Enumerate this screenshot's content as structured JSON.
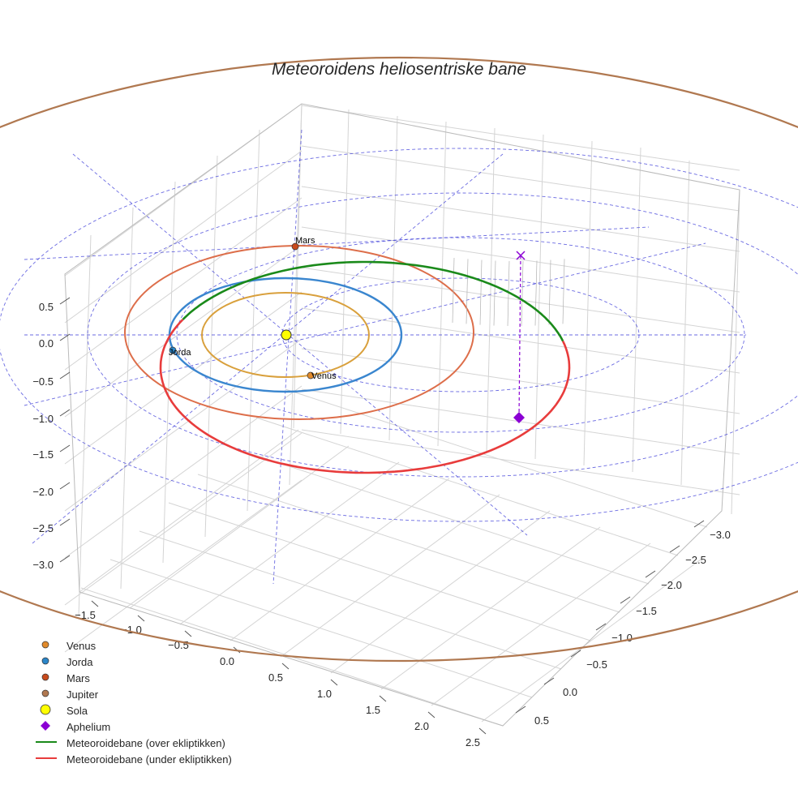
{
  "chart_data": {
    "type": "scatter",
    "title": "Meteoroidens heliosentriske bane",
    "projection": "3d",
    "x_ticks": [
      "−1.5",
      "−1.0",
      "−0.5",
      "0.0",
      "0.5",
      "1.0",
      "1.5",
      "2.0",
      "2.5"
    ],
    "y_ticks": [
      "−3.0",
      "−2.5",
      "−2.0",
      "−1.5",
      "−1.0",
      "−0.5",
      "0.0",
      "0.5"
    ],
    "z_ticks": [
      "0.5",
      "0.0",
      "−0.5",
      "−1.0",
      "−1.5",
      "−2.0",
      "−2.5",
      "−3.0"
    ],
    "planets": [
      {
        "name": "Venus",
        "orbit_radius_au": 0.72,
        "color": "#e08a2b"
      },
      {
        "name": "Jorda",
        "orbit_radius_au": 1.0,
        "color": "#2b86c9"
      },
      {
        "name": "Mars",
        "orbit_radius_au": 1.52,
        "color": "#c84a1c"
      },
      {
        "name": "Jupiter",
        "orbit_radius_au": 5.2,
        "color": "#b07850"
      }
    ],
    "sun": {
      "name": "Sola",
      "color": "#ffff00"
    },
    "aphelium": {
      "name": "Aphelium",
      "color": "#8b00d4"
    },
    "meteoroid_orbit": {
      "above_label": "Meteoroidebane (over ekliptikken)",
      "above_color": "#1a8a1a",
      "below_label": "Meteoroidebane (under ekliptikken)",
      "below_color": "#e83c3c"
    },
    "point_labels": [
      "Mars",
      "Jorda",
      "Venus"
    ],
    "legend": [
      "Venus",
      "Jorda",
      "Mars",
      "Jupiter",
      "Sola",
      "Aphelium",
      "Meteoroidebane (over ekliptikken)",
      "Meteoroidebane (under ekliptikken)"
    ],
    "legend_position": "bottom-left",
    "grid": true
  }
}
